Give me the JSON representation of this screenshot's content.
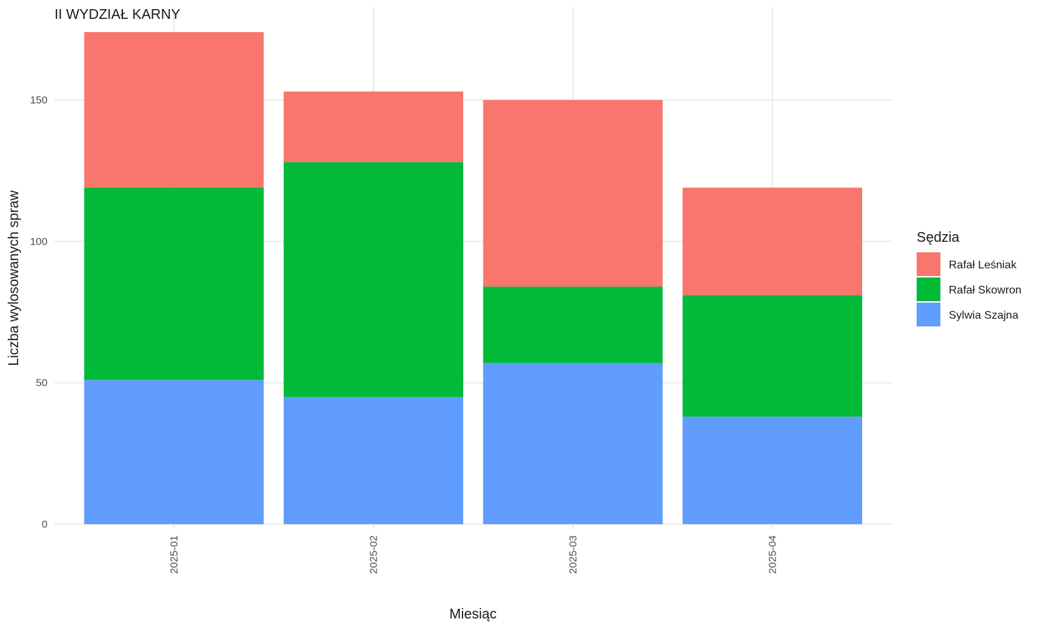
{
  "chart_data": {
    "type": "bar",
    "stacked": true,
    "title": "II WYDZIAŁ KARNY",
    "xlabel": "Miesiąc",
    "ylabel": "Liczba wylosowanych spraw",
    "categories": [
      "2025-01",
      "2025-02",
      "2025-03",
      "2025-04"
    ],
    "series": [
      {
        "name": "Sylwia Szajna",
        "values": [
          51,
          45,
          57,
          38
        ],
        "color": "#619CFF"
      },
      {
        "name": "Rafał Skowron",
        "values": [
          68,
          83,
          27,
          43
        ],
        "color": "#00BA38"
      },
      {
        "name": "Rafał Leśniak",
        "values": [
          55,
          25,
          66,
          38
        ],
        "color": "#F8766D"
      }
    ],
    "yticks": [
      0,
      50,
      100,
      150
    ],
    "ylim": [
      0,
      180
    ],
    "grid": true,
    "legend": {
      "title": "Sędzia",
      "placement": "right",
      "order": [
        "Rafał Leśniak",
        "Rafał Skowron",
        "Sylwia Szajna"
      ]
    }
  }
}
